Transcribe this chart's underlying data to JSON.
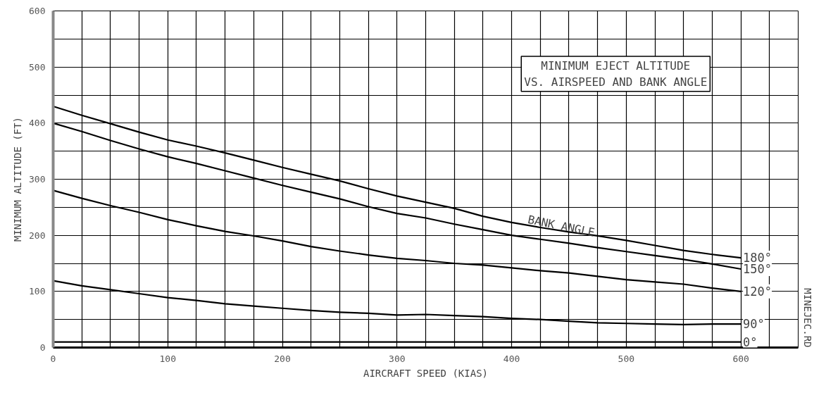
{
  "chart_data": {
    "type": "line",
    "title": "MINIMUM EJECT ALTITUDE\nVS. AIRSPEED AND BANK ANGLE",
    "xlabel": "AIRCRAFT SPEED (KIAS)",
    "ylabel": "MINIMUM ALTITUDE (FT)",
    "x": [
      0,
      25,
      50,
      75,
      100,
      125,
      150,
      175,
      200,
      225,
      250,
      275,
      300,
      325,
      350,
      375,
      400,
      425,
      450,
      475,
      500,
      525,
      550,
      575,
      600
    ],
    "series": [
      {
        "name": "180°",
        "color": "#000000",
        "values": [
          430,
          414,
          399,
          384,
          370,
          359,
          347,
          334,
          321,
          309,
          297,
          283,
          270,
          259,
          248,
          234,
          223,
          214,
          206,
          199,
          191,
          182,
          173,
          166,
          160
        ]
      },
      {
        "name": "150°",
        "color": "#000000",
        "values": [
          400,
          385,
          369,
          354,
          340,
          328,
          315,
          302,
          289,
          277,
          265,
          251,
          239,
          231,
          220,
          210,
          200,
          193,
          186,
          178,
          171,
          164,
          157,
          149,
          140
        ]
      },
      {
        "name": "120°",
        "color": "#000000",
        "values": [
          280,
          266,
          253,
          241,
          228,
          217,
          207,
          199,
          190,
          180,
          172,
          165,
          159,
          155,
          150,
          147,
          142,
          137,
          133,
          127,
          121,
          117,
          113,
          106,
          100
        ]
      },
      {
        "name": "90°",
        "color": "#000000",
        "values": [
          119,
          110,
          103,
          96,
          89,
          84,
          78,
          74,
          70,
          66,
          63,
          61,
          58,
          59,
          57,
          55,
          52,
          50,
          47,
          44,
          43,
          42,
          41,
          42,
          42
        ]
      },
      {
        "name": "0°",
        "color": "#000000",
        "values": [
          10,
          10,
          10,
          10,
          10,
          10,
          10,
          10,
          10,
          10,
          10,
          10,
          10,
          10,
          10,
          10,
          10,
          10,
          10,
          10,
          10,
          10,
          10,
          10,
          10
        ]
      }
    ],
    "xlim": [
      0,
      650
    ],
    "ylim": [
      0,
      600
    ],
    "xticks": [
      0,
      {
        "value": 25,
        "label": null
      },
      100,
      {
        "value": 50,
        "label": null
      },
      {
        "value": 75,
        "label": null
      },
      {
        "value": 125,
        "label": null
      },
      {
        "value": 150,
        "label": null
      },
      {
        "value": 175,
        "label": null
      },
      200,
      {
        "value": 225,
        "label": null
      },
      {
        "value": 250,
        "label": null
      },
      {
        "value": 275,
        "label": null
      },
      300,
      {
        "value": 325,
        "label": null
      },
      {
        "value": 350,
        "label": null
      },
      {
        "value": 375,
        "label": null
      },
      400,
      {
        "value": 425,
        "label": null
      },
      {
        "value": 450,
        "label": null
      },
      {
        "value": 475,
        "label": null
      },
      500,
      {
        "value": 525,
        "label": null
      },
      {
        "value": 550,
        "label": null
      },
      {
        "value": 575,
        "label": null
      },
      600,
      {
        "value": 625,
        "label": null
      },
      {
        "value": 650,
        "label": null
      }
    ],
    "yticks": [
      0,
      {
        "value": 50,
        "label": null
      },
      100,
      {
        "value": 150,
        "label": null
      },
      200,
      {
        "value": 250,
        "label": null
      },
      300,
      {
        "value": 350,
        "label": null
      },
      400,
      {
        "value": 450,
        "label": null
      },
      500,
      {
        "value": 550,
        "label": null
      },
      600
    ],
    "grid": true,
    "marker": "none",
    "line_style": "solid",
    "annotations": [
      {
        "text": "BANK ANGLE",
        "x": 450,
        "y": 212
      },
      "MINEJEC.RD"
    ]
  }
}
